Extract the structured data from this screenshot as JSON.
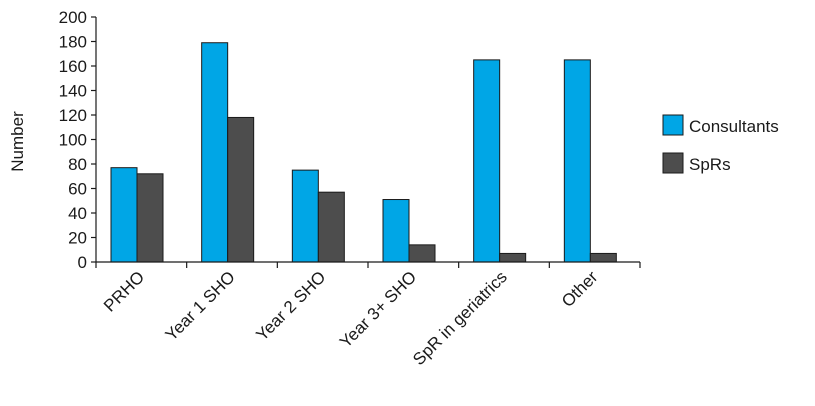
{
  "chart_data": {
    "type": "bar",
    "title": "",
    "xlabel": "",
    "ylabel": "Number",
    "ylim": [
      0,
      200
    ],
    "yticks": [
      0,
      20,
      40,
      60,
      80,
      100,
      120,
      140,
      160,
      180,
      200
    ],
    "categories": [
      "PRHO",
      "Year 1 SHO",
      "Year 2 SHO",
      "Year 3+ SHO",
      "SpR in geriatrics",
      "Other"
    ],
    "series": [
      {
        "name": "Consultants",
        "color": "#00a6e6",
        "values": [
          77,
          179,
          75,
          51,
          165,
          165
        ]
      },
      {
        "name": "SpRs",
        "color": "#4d4d4d",
        "values": [
          72,
          118,
          57,
          14,
          7,
          7
        ]
      }
    ],
    "grid": false,
    "legend": "right"
  }
}
